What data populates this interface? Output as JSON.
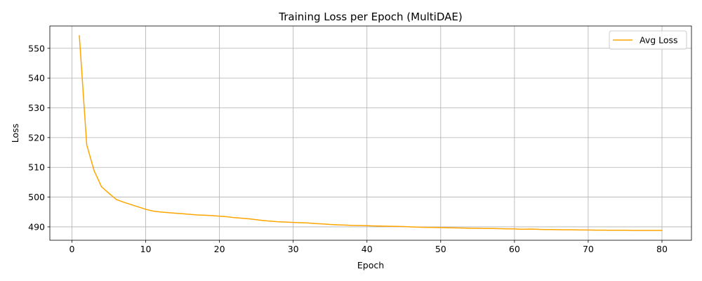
{
  "chart_data": {
    "type": "line",
    "title": "Training Loss per Epoch (MultiDAE)",
    "xlabel": "Epoch",
    "ylabel": "Loss",
    "xlim": [
      -3,
      84
    ],
    "ylim": [
      485.5,
      557.5
    ],
    "xticks": [
      0,
      10,
      20,
      30,
      40,
      50,
      60,
      70,
      80
    ],
    "yticks": [
      490,
      500,
      510,
      520,
      530,
      540,
      550
    ],
    "grid": true,
    "legend_position": "top-right",
    "colors": {
      "series": "#ffa500",
      "grid": "#b0b0b0",
      "axis": "#000000"
    },
    "series": [
      {
        "name": "Avg Loss",
        "x": [
          1,
          2,
          3,
          4,
          5,
          6,
          7,
          8,
          9,
          10,
          11,
          12,
          13,
          14,
          15,
          16,
          17,
          18,
          19,
          20,
          21,
          22,
          23,
          24,
          25,
          26,
          27,
          28,
          29,
          30,
          31,
          32,
          33,
          34,
          35,
          36,
          37,
          38,
          39,
          40,
          41,
          42,
          43,
          44,
          45,
          46,
          47,
          48,
          49,
          50,
          51,
          52,
          53,
          54,
          55,
          56,
          57,
          58,
          59,
          60,
          61,
          62,
          63,
          64,
          65,
          66,
          67,
          68,
          69,
          70,
          71,
          72,
          73,
          74,
          75,
          76,
          77,
          78,
          79,
          80
        ],
        "values": [
          554.2,
          517.6,
          508.9,
          503.5,
          501.3,
          499.2,
          498.3,
          497.5,
          496.7,
          495.9,
          495.3,
          495.0,
          494.8,
          494.6,
          494.4,
          494.2,
          494.0,
          493.9,
          493.8,
          493.6,
          493.4,
          493.1,
          492.9,
          492.7,
          492.4,
          492.1,
          491.9,
          491.7,
          491.6,
          491.5,
          491.4,
          491.3,
          491.1,
          491.0,
          490.8,
          490.7,
          490.6,
          490.5,
          490.45,
          490.4,
          490.3,
          490.25,
          490.2,
          490.15,
          490.1,
          490.0,
          489.9,
          489.85,
          489.8,
          489.75,
          489.7,
          489.65,
          489.6,
          489.55,
          489.5,
          489.45,
          489.45,
          489.4,
          489.35,
          489.3,
          489.2,
          489.25,
          489.2,
          489.1,
          489.1,
          489.05,
          489.0,
          489.0,
          488.95,
          488.95,
          488.9,
          488.9,
          488.85,
          488.85,
          488.85,
          488.8,
          488.8,
          488.8,
          488.8,
          488.8
        ]
      }
    ]
  }
}
